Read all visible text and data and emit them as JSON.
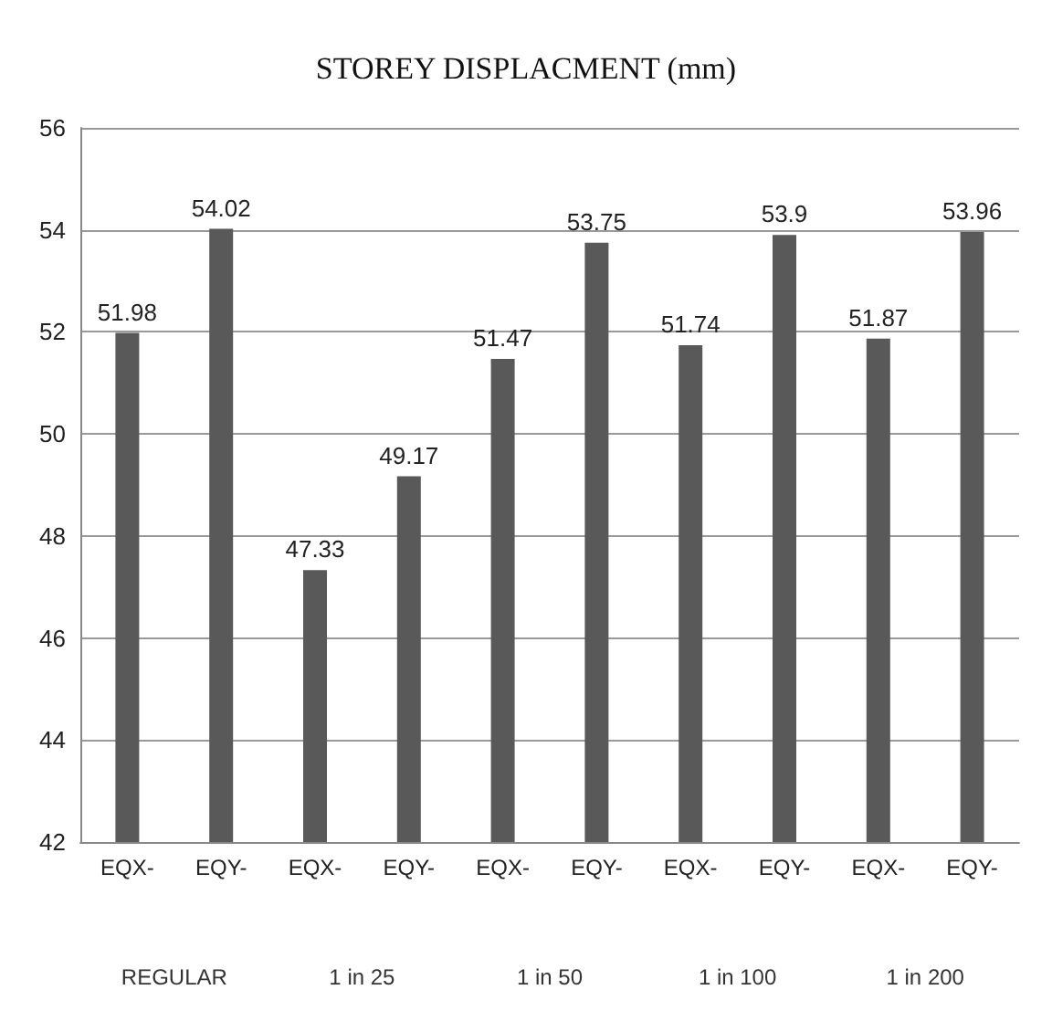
{
  "chart_data": {
    "type": "bar",
    "title": "STOREY DISPLACMENT (mm)",
    "categories": [
      "EQX-",
      "EQY-",
      "EQX-",
      "EQY-",
      "EQX-",
      "EQY-",
      "EQX-",
      "EQY-",
      "EQX-",
      "EQY-"
    ],
    "values": [
      51.98,
      54.02,
      47.33,
      49.17,
      51.47,
      53.75,
      51.74,
      53.9,
      51.87,
      53.96
    ],
    "color": "#595959",
    "ylim": [
      42,
      56
    ],
    "yticks": [
      42,
      44,
      46,
      48,
      50,
      52,
      54,
      56
    ],
    "grid": "y",
    "data_labels": true,
    "annotations": [
      "REGULAR",
      "1 in 25",
      "1 in 50",
      "1 in 100",
      "1 in 200"
    ]
  }
}
